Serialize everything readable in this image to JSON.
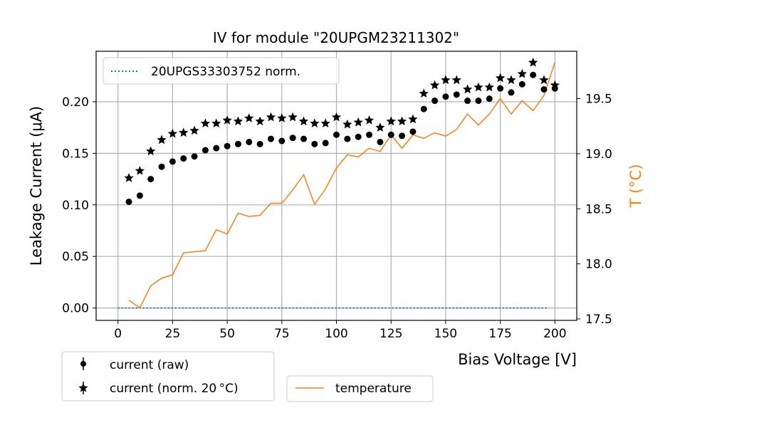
{
  "chart_data": {
    "type": "scatter",
    "title": "IV for module \"20UPGM23211302\"",
    "xlabel": "Bias Voltage [V]",
    "ylabel": "Leakage Current (μA)",
    "y2label": "T (°C)",
    "xlim": [
      -10,
      210
    ],
    "ylim": [
      -0.012,
      0.249
    ],
    "y2lim": [
      17.487,
      19.93
    ],
    "xticks": [
      0,
      25,
      50,
      75,
      100,
      125,
      150,
      175,
      200
    ],
    "yticks": [
      0.0,
      0.05,
      0.1,
      0.15,
      0.2
    ],
    "y2ticks": [
      17.5,
      18.0,
      18.5,
      19.0,
      19.5
    ],
    "grid": true,
    "x": [
      5,
      10,
      15,
      20,
      25,
      30,
      35,
      40,
      45,
      50,
      55,
      60,
      65,
      70,
      75,
      80,
      85,
      90,
      95,
      100,
      105,
      110,
      115,
      120,
      125,
      130,
      135,
      140,
      145,
      150,
      155,
      160,
      165,
      170,
      175,
      180,
      185,
      190,
      195,
      200
    ],
    "series": [
      {
        "name": "current (raw)",
        "axis": "left",
        "marker": "circle",
        "color": "#000000",
        "values": [
          0.103,
          0.109,
          0.125,
          0.137,
          0.142,
          0.145,
          0.147,
          0.153,
          0.155,
          0.157,
          0.159,
          0.161,
          0.159,
          0.164,
          0.162,
          0.165,
          0.164,
          0.159,
          0.16,
          0.168,
          0.164,
          0.166,
          0.168,
          0.161,
          0.168,
          0.167,
          0.171,
          0.193,
          0.201,
          0.205,
          0.207,
          0.201,
          0.201,
          0.203,
          0.213,
          0.209,
          0.217,
          0.226,
          0.212,
          0.213
        ]
      },
      {
        "name": "current (norm. 20 °C)",
        "axis": "left",
        "marker": "star",
        "color": "#000000",
        "values": [
          0.126,
          0.133,
          0.152,
          0.163,
          0.169,
          0.17,
          0.172,
          0.179,
          0.179,
          0.182,
          0.181,
          0.184,
          0.181,
          0.185,
          0.184,
          0.185,
          0.181,
          0.179,
          0.179,
          0.185,
          0.178,
          0.18,
          0.182,
          0.175,
          0.181,
          0.181,
          0.183,
          0.208,
          0.216,
          0.221,
          0.221,
          0.212,
          0.214,
          0.214,
          0.223,
          0.221,
          0.227,
          0.238,
          0.221,
          0.216
        ]
      },
      {
        "name": "temperature",
        "axis": "right",
        "marker": "line",
        "color": "#ff7f0e",
        "values": [
          17.67,
          17.6,
          17.8,
          17.87,
          17.9,
          18.1,
          18.11,
          18.12,
          18.31,
          18.27,
          18.46,
          18.43,
          18.44,
          18.55,
          18.55,
          18.67,
          18.81,
          18.54,
          18.68,
          18.87,
          18.99,
          18.97,
          19.05,
          19.02,
          19.17,
          19.05,
          19.17,
          19.14,
          19.19,
          19.16,
          19.22,
          19.36,
          19.26,
          19.36,
          19.5,
          19.36,
          19.48,
          19.39,
          19.53,
          19.83
        ]
      },
      {
        "name": "20UPGS33303752 norm.",
        "axis": "left",
        "marker": "dotted",
        "color": "#1f77b4",
        "x_range": [
          0,
          197
        ],
        "values": [
          0,
          0
        ]
      }
    ],
    "legends": {
      "inside": "top-left",
      "below_left": "current legend",
      "below_center": "temperature legend"
    }
  }
}
